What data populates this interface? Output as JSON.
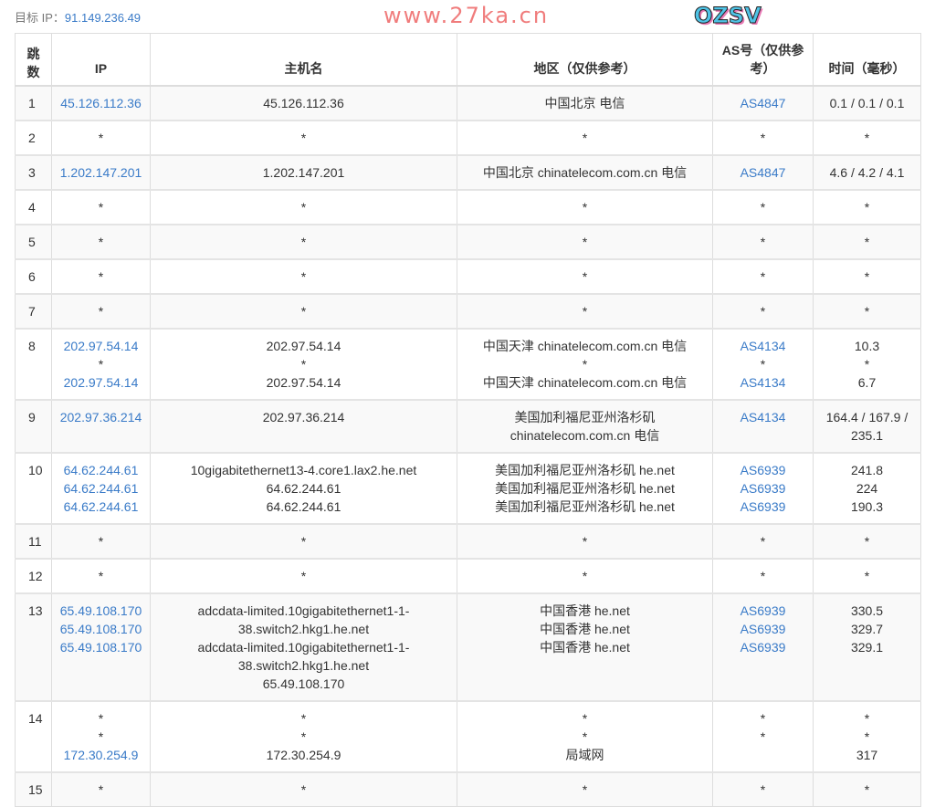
{
  "target": {
    "label": "目标 IP：",
    "ip": "91.149.236.49"
  },
  "columns": [
    "跳数",
    "IP",
    "主机名",
    "地区（仅供参考）",
    "AS号（仅供参考）",
    "时间（毫秒）"
  ],
  "rows": [
    {
      "hop": "1",
      "ip": [
        "45.126.112.36"
      ],
      "host": [
        "45.126.112.36"
      ],
      "region": [
        "中国北京 电信"
      ],
      "as": [
        "AS4847"
      ],
      "time": [
        "0.1 / 0.1 / 0.1"
      ]
    },
    {
      "hop": "2",
      "ip": [
        "*"
      ],
      "host": [
        "*"
      ],
      "region": [
        "*"
      ],
      "as": [
        "*"
      ],
      "time": [
        "*"
      ]
    },
    {
      "hop": "3",
      "ip": [
        "1.202.147.201"
      ],
      "host": [
        "1.202.147.201"
      ],
      "region": [
        "中国北京 chinatelecom.com.cn 电信"
      ],
      "as": [
        "AS4847"
      ],
      "time": [
        "4.6 / 4.2 / 4.1"
      ]
    },
    {
      "hop": "4",
      "ip": [
        "*"
      ],
      "host": [
        "*"
      ],
      "region": [
        "*"
      ],
      "as": [
        "*"
      ],
      "time": [
        "*"
      ]
    },
    {
      "hop": "5",
      "ip": [
        "*"
      ],
      "host": [
        "*"
      ],
      "region": [
        "*"
      ],
      "as": [
        "*"
      ],
      "time": [
        "*"
      ]
    },
    {
      "hop": "6",
      "ip": [
        "*"
      ],
      "host": [
        "*"
      ],
      "region": [
        "*"
      ],
      "as": [
        "*"
      ],
      "time": [
        "*"
      ]
    },
    {
      "hop": "7",
      "ip": [
        "*"
      ],
      "host": [
        "*"
      ],
      "region": [
        "*"
      ],
      "as": [
        "*"
      ],
      "time": [
        "*"
      ]
    },
    {
      "hop": "8",
      "ip": [
        "202.97.54.14",
        "*",
        "202.97.54.14"
      ],
      "host": [
        "202.97.54.14",
        "*",
        "202.97.54.14"
      ],
      "region": [
        "中国天津 chinatelecom.com.cn 电信",
        "*",
        "中国天津 chinatelecom.com.cn 电信"
      ],
      "as": [
        "AS4134",
        "*",
        "AS4134"
      ],
      "time": [
        "10.3",
        "*",
        "6.7"
      ]
    },
    {
      "hop": "9",
      "ip": [
        "202.97.36.214"
      ],
      "host": [
        "202.97.36.214"
      ],
      "region": [
        "美国加利福尼亚州洛杉矶 chinatelecom.com.cn 电信"
      ],
      "as": [
        "AS4134"
      ],
      "time": [
        "164.4 / 167.9 / 235.1"
      ]
    },
    {
      "hop": "10",
      "ip": [
        "64.62.244.61",
        "64.62.244.61",
        "64.62.244.61"
      ],
      "host": [
        "10gigabitethernet13-4.core1.lax2.he.net",
        "64.62.244.61",
        "64.62.244.61"
      ],
      "region": [
        "美国加利福尼亚州洛杉矶 he.net",
        "美国加利福尼亚州洛杉矶 he.net",
        "美国加利福尼亚州洛杉矶 he.net"
      ],
      "as": [
        "AS6939",
        "AS6939",
        "AS6939"
      ],
      "time": [
        "241.8",
        "224",
        "190.3"
      ]
    },
    {
      "hop": "11",
      "ip": [
        "*"
      ],
      "host": [
        "*"
      ],
      "region": [
        "*"
      ],
      "as": [
        "*"
      ],
      "time": [
        "*"
      ]
    },
    {
      "hop": "12",
      "ip": [
        "*"
      ],
      "host": [
        "*"
      ],
      "region": [
        "*"
      ],
      "as": [
        "*"
      ],
      "time": [
        "*"
      ]
    },
    {
      "hop": "13",
      "ip": [
        "65.49.108.170",
        "65.49.108.170",
        "65.49.108.170"
      ],
      "host": [
        "adcdata-limited.10gigabitethernet1-1-38.switch2.hkg1.he.net",
        "adcdata-limited.10gigabitethernet1-1-38.switch2.hkg1.he.net",
        "65.49.108.170"
      ],
      "region": [
        "中国香港 he.net",
        "中国香港 he.net",
        "中国香港 he.net"
      ],
      "as": [
        "AS6939",
        "AS6939",
        "AS6939"
      ],
      "time": [
        "330.5",
        "329.7",
        "329.1"
      ]
    },
    {
      "hop": "14",
      "ip": [
        "*",
        "*",
        "172.30.254.9"
      ],
      "host": [
        "*",
        "*",
        "172.30.254.9"
      ],
      "region": [
        "*",
        "*",
        "局域网"
      ],
      "as": [
        "*",
        "*",
        ""
      ],
      "time": [
        "*",
        "*",
        "317"
      ]
    },
    {
      "hop": "15",
      "ip": [
        "*"
      ],
      "host": [
        "*"
      ],
      "region": [
        "*"
      ],
      "as": [
        "*"
      ],
      "time": [
        "*"
      ]
    }
  ],
  "watermarks": {
    "text": "www.27ka.cn",
    "logo": "OZSV"
  },
  "colors": {
    "link": "#3a7bc8",
    "stripe": "#f9f9f9",
    "border": "#dddddd",
    "watermark": "#eb5050"
  }
}
